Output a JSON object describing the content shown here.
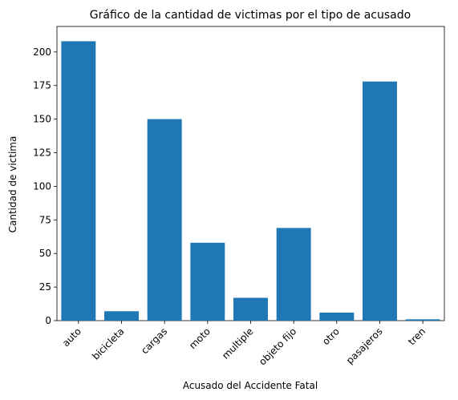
{
  "chart_data": {
    "type": "bar",
    "title": "Gráfico de la cantidad de victimas por el tipo de acusado",
    "xlabel": "Acusado del Accidente Fatal",
    "ylabel": "Cantidad de victima",
    "categories": [
      "auto",
      "bicicleta",
      "cargas",
      "moto",
      "multiple",
      "objeto fijo",
      "otro",
      "pasajeros",
      "tren"
    ],
    "values": [
      208,
      7,
      150,
      58,
      17,
      69,
      6,
      178,
      1
    ],
    "ylim": [
      0,
      219
    ],
    "yticks": [
      0,
      25,
      50,
      75,
      100,
      125,
      150,
      175,
      200
    ],
    "bar_color": "#1f77b4",
    "grid": false,
    "legend": "none"
  }
}
